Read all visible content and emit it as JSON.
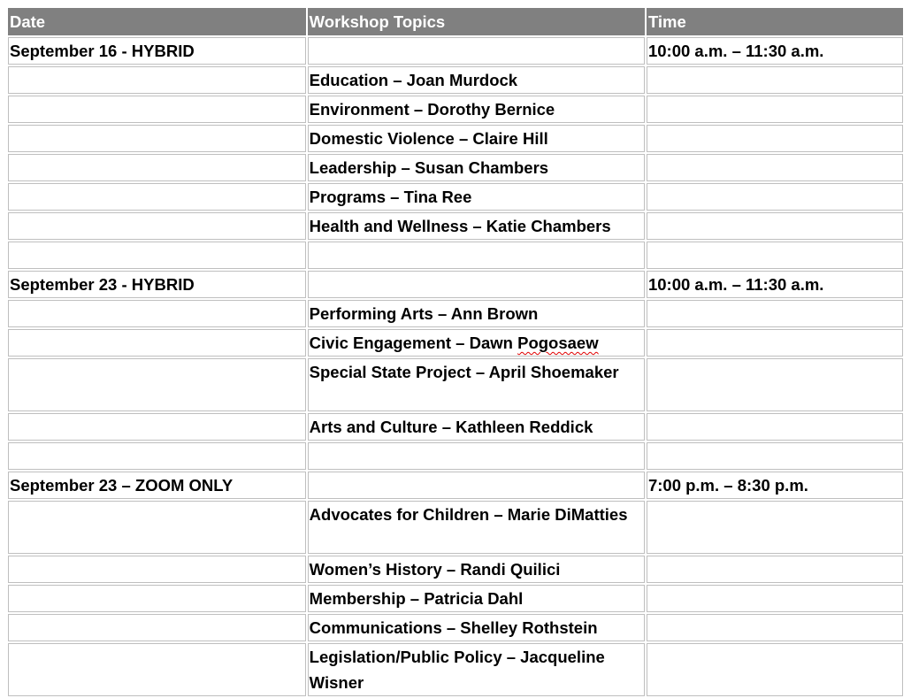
{
  "headers": [
    "Date",
    "Workshop Topics",
    "Time"
  ],
  "rows": [
    {
      "date": "September 16 - HYBRID",
      "topic": "",
      "time": "10:00 a.m. – 11:30 a.m."
    },
    {
      "date": "",
      "topic": "Education – Joan Murdock",
      "time": ""
    },
    {
      "date": "",
      "topic": "Environment – Dorothy Bernice",
      "time": ""
    },
    {
      "date": "",
      "topic": "Domestic Violence – Claire Hill",
      "time": ""
    },
    {
      "date": "",
      "topic": "Leadership – Susan Chambers",
      "time": ""
    },
    {
      "date": "",
      "topic": "Programs – Tina Ree",
      "time": ""
    },
    {
      "date": "",
      "topic": "Health and Wellness – Katie Chambers",
      "time": ""
    },
    {
      "date": "",
      "topic": "",
      "time": ""
    },
    {
      "date": "September 23 - HYBRID",
      "topic": "",
      "time": "10:00 a.m. – 11:30 a.m."
    },
    {
      "date": "",
      "topic": "Performing Arts – Ann Brown",
      "time": ""
    },
    {
      "date": "",
      "topic": "Civic Engagement – Dawn ",
      "topic_misspelled": "Pogosaew",
      "time": ""
    },
    {
      "date": "",
      "topic": "Special State Project – April Shoemaker",
      "time": "",
      "two": true
    },
    {
      "date": "",
      "topic": "Arts and Culture – Kathleen Reddick",
      "time": ""
    },
    {
      "date": "",
      "topic": "",
      "time": ""
    },
    {
      "date": "September 23 – ZOOM ONLY",
      "topic": "",
      "time": "7:00 p.m. – 8:30 p.m."
    },
    {
      "date": "",
      "topic": "Advocates for Children – Marie DiMatties",
      "time": "",
      "two": true
    },
    {
      "date": "",
      "topic": "Women’s History – Randi Quilici",
      "time": ""
    },
    {
      "date": "",
      "topic": "Membership – Patricia Dahl",
      "time": ""
    },
    {
      "date": "",
      "topic": "Communications – Shelley Rothstein",
      "time": ""
    },
    {
      "date": "",
      "topic": "Legislation/Public Policy – Jacqueline Wisner",
      "time": "",
      "two": true
    }
  ]
}
